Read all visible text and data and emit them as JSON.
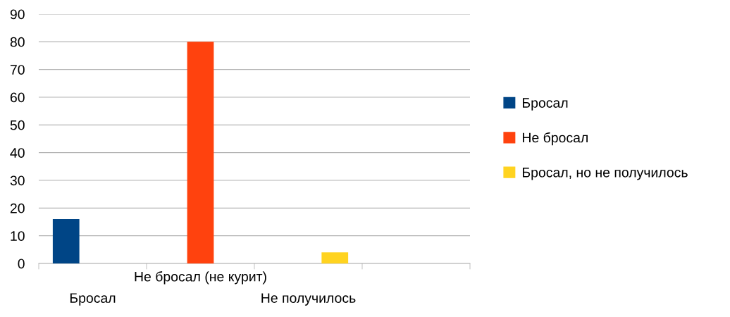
{
  "chart_data": {
    "type": "bar",
    "categories": [
      "Бросал",
      "Не бросал (не курит)",
      "Не получилось",
      null
    ],
    "series": [
      {
        "name": "Бросал",
        "color": "#004586",
        "values": [
          16,
          null,
          null,
          null
        ]
      },
      {
        "name": "Не бросал",
        "color": "#ff420e",
        "values": [
          null,
          80,
          null,
          null
        ]
      },
      {
        "name": "Бросал, но не получилось",
        "color": "#ffd320",
        "values": [
          null,
          null,
          4,
          null
        ]
      }
    ],
    "ylim": [
      0,
      90
    ],
    "yticks": [
      0,
      10,
      20,
      30,
      40,
      50,
      60,
      70,
      80,
      90
    ],
    "grid": "y",
    "legend": "right"
  }
}
